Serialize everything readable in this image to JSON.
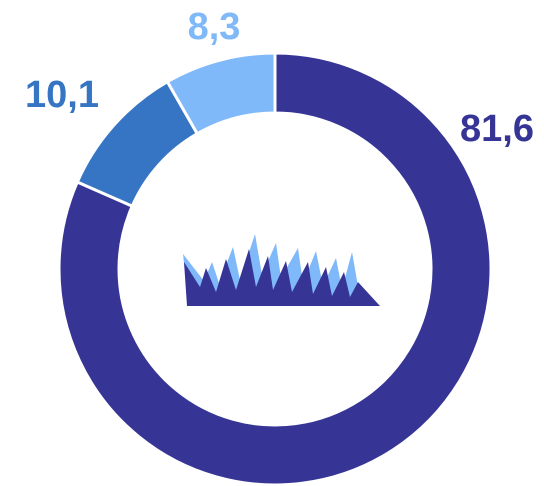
{
  "chart_data": {
    "type": "pie",
    "variant": "donut",
    "start": "top",
    "direction": "clockwise",
    "slices": [
      {
        "label": "81,6",
        "value": 81.6,
        "color": "#363596"
      },
      {
        "label": "10,1",
        "value": 10.1,
        "color": "#3674C4"
      },
      {
        "label": "8,3",
        "value": 8.3,
        "color": "#80B9F9"
      }
    ],
    "legend": "none",
    "center_icon": "grass-icon"
  }
}
